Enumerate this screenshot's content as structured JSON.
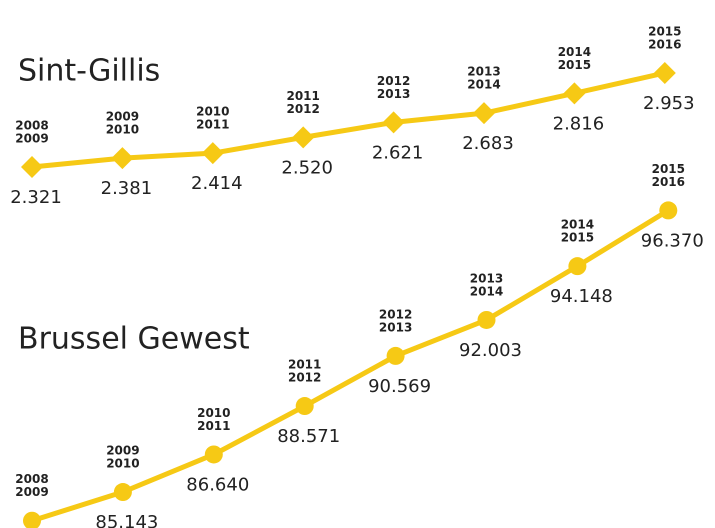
{
  "chart_data": [
    {
      "type": "line",
      "title": "Sint-Gillis",
      "marker": "diamond",
      "color": "#f6c915",
      "categories": [
        [
          "2008",
          "2009"
        ],
        [
          "2009",
          "2010"
        ],
        [
          "2010",
          "2011"
        ],
        [
          "2011",
          "2012"
        ],
        [
          "2012",
          "2013"
        ],
        [
          "2013",
          "2014"
        ],
        [
          "2014",
          "2015"
        ],
        [
          "2015",
          "2016"
        ]
      ],
      "values": [
        2.321,
        2.381,
        2.414,
        2.52,
        2.621,
        2.683,
        2.816,
        2.953
      ],
      "value_labels": [
        "2.321",
        "2.381",
        "2.414",
        "2.520",
        "2.621",
        "2.683",
        "2.816",
        "2.953"
      ],
      "ylim": [
        2.2,
        3.0
      ]
    },
    {
      "type": "line",
      "title": "Brussel Gewest",
      "marker": "circle",
      "color": "#f6c915",
      "categories": [
        [
          "2008",
          "2009"
        ],
        [
          "2009",
          "2010"
        ],
        [
          "2010",
          "2011"
        ],
        [
          "2011",
          "2012"
        ],
        [
          "2012",
          "2013"
        ],
        [
          "2013",
          "2014"
        ],
        [
          "2014",
          "2015"
        ],
        [
          "2015",
          "2016"
        ]
      ],
      "values": [
        84.0,
        85.143,
        86.64,
        88.571,
        90.569,
        92.003,
        94.148,
        96.37
      ],
      "value_labels": [
        null,
        "85.143",
        "86.640",
        "88.571",
        "90.569",
        "92.003",
        "94.148",
        "96.370"
      ],
      "ylim": [
        83,
        97
      ]
    }
  ]
}
